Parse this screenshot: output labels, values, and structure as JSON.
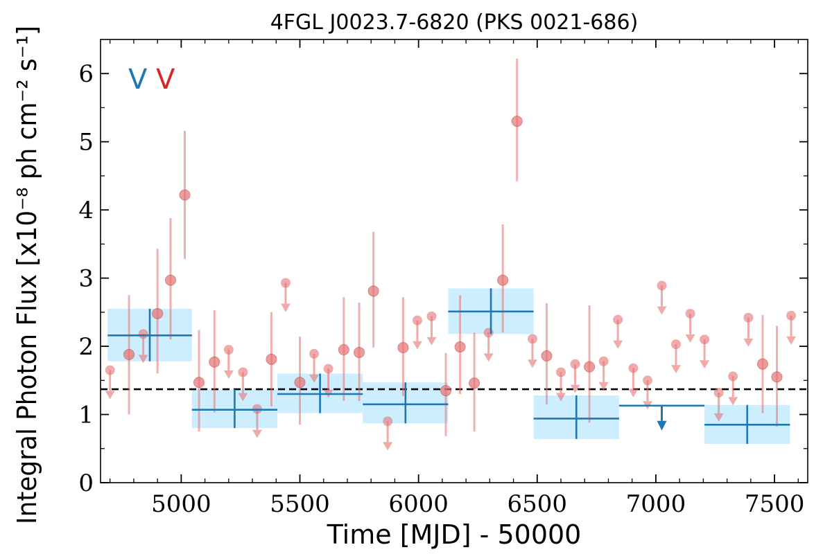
{
  "chart_data": {
    "type": "scatter",
    "title": "4FGL J0023.7-6820 (PKS 0021-686)",
    "xlabel": "Time [MJD] - 50000",
    "ylabel": "Integral Photon Flux [x10⁻⁸ ph cm⁻² s⁻¹]",
    "xlim": [
      4660,
      7640
    ],
    "ylim": [
      0,
      6.5
    ],
    "xticks": [
      5000,
      5500,
      6000,
      6500,
      7000,
      7500
    ],
    "yticks": [
      0,
      1,
      2,
      3,
      4,
      5,
      6
    ],
    "grid": false,
    "legend_position": "top-left",
    "legend_glyphs": [
      {
        "text": "V",
        "color": "#1f77b4"
      },
      {
        "text": "V",
        "color": "#d62728"
      }
    ],
    "mean_flux": 1.37,
    "colors": {
      "fine_bins": "#e57373",
      "coarse_bins": "#1f77b4",
      "coarse_band": "#cdeeff"
    },
    "series": [
      {
        "kind": "fine",
        "points": [
          {
            "x": 4700,
            "y": 1.65,
            "ul": true
          },
          {
            "x": 4780,
            "y": 1.88,
            "lo": 1.0,
            "hi": 2.75
          },
          {
            "x": 4840,
            "y": 2.18,
            "ul": true
          },
          {
            "x": 4900,
            "y": 2.48,
            "lo": 1.6,
            "hi": 3.43
          },
          {
            "x": 4955,
            "y": 2.97,
            "lo": 2.1,
            "hi": 3.88
          },
          {
            "x": 5015,
            "y": 4.22,
            "lo": 3.28,
            "hi": 5.16
          },
          {
            "x": 5075,
            "y": 1.47,
            "lo": 0.75,
            "hi": 2.24
          },
          {
            "x": 5140,
            "y": 1.77,
            "lo": 1.03,
            "hi": 2.53
          },
          {
            "x": 5200,
            "y": 1.95,
            "ul": true
          },
          {
            "x": 5260,
            "y": 1.62,
            "ul": true
          },
          {
            "x": 5320,
            "y": 1.08,
            "ul": true
          },
          {
            "x": 5380,
            "y": 1.81,
            "lo": 1.12,
            "hi": 2.5
          },
          {
            "x": 5440,
            "y": 2.93,
            "ul": true
          },
          {
            "x": 5500,
            "y": 1.47,
            "lo": 0.85,
            "hi": 2.14
          },
          {
            "x": 5560,
            "y": 1.89,
            "ul": true
          },
          {
            "x": 5620,
            "y": 1.67,
            "ul": true
          },
          {
            "x": 5685,
            "y": 1.95,
            "lo": 1.2,
            "hi": 2.72
          },
          {
            "x": 5750,
            "y": 1.91,
            "lo": 1.2,
            "hi": 2.64
          },
          {
            "x": 5810,
            "y": 2.81,
            "lo": 1.98,
            "hi": 3.68
          },
          {
            "x": 5870,
            "y": 0.9,
            "ul": true
          },
          {
            "x": 5935,
            "y": 1.98,
            "lo": 1.27,
            "hi": 2.72
          },
          {
            "x": 5995,
            "y": 2.38,
            "ul": true
          },
          {
            "x": 6055,
            "y": 2.44,
            "ul": true
          },
          {
            "x": 6115,
            "y": 1.35,
            "lo": 0.68,
            "hi": 1.9
          },
          {
            "x": 6175,
            "y": 1.99,
            "lo": 1.3,
            "hi": 2.75
          },
          {
            "x": 6235,
            "y": 1.46,
            "lo": 0.75,
            "hi": 2.2
          },
          {
            "x": 6295,
            "y": 2.2,
            "ul": true
          },
          {
            "x": 6355,
            "y": 2.97,
            "lo": 2.2,
            "hi": 3.79
          },
          {
            "x": 6415,
            "y": 5.3,
            "lo": 4.42,
            "hi": 6.22
          },
          {
            "x": 6480,
            "y": 2.11,
            "ul": true
          },
          {
            "x": 6540,
            "y": 1.86,
            "lo": 1.15,
            "hi": 2.63
          },
          {
            "x": 6600,
            "y": 1.62,
            "ul": true
          },
          {
            "x": 6660,
            "y": 1.74,
            "ul": true
          },
          {
            "x": 6720,
            "y": 1.7,
            "lo": 0.88,
            "hi": 2.6
          },
          {
            "x": 6780,
            "y": 1.78,
            "ul": true
          },
          {
            "x": 6840,
            "y": 2.39,
            "ul": true
          },
          {
            "x": 6905,
            "y": 1.68,
            "ul": true
          },
          {
            "x": 6965,
            "y": 1.5,
            "ul": true
          },
          {
            "x": 7025,
            "y": 2.89,
            "ul": true
          },
          {
            "x": 7085,
            "y": 2.03,
            "ul": true
          },
          {
            "x": 7145,
            "y": 2.48,
            "ul": true
          },
          {
            "x": 7205,
            "y": 2.1,
            "ul": true
          },
          {
            "x": 7265,
            "y": 1.32,
            "ul": true
          },
          {
            "x": 7325,
            "y": 1.56,
            "ul": true
          },
          {
            "x": 7390,
            "y": 2.42,
            "ul": true
          },
          {
            "x": 7450,
            "y": 1.74,
            "lo": 1.02,
            "hi": 2.46
          },
          {
            "x": 7510,
            "y": 1.55,
            "lo": 0.82,
            "hi": 2.3
          },
          {
            "x": 7570,
            "y": 2.45,
            "ul": true
          }
        ]
      },
      {
        "kind": "coarse",
        "bins": [
          {
            "x0": 4690,
            "x1": 5045,
            "y": 2.16,
            "lo": 1.78,
            "hi": 2.55
          },
          {
            "x0": 5045,
            "x1": 5405,
            "y": 1.07,
            "lo": 0.8,
            "hi": 1.37
          },
          {
            "x0": 5405,
            "x1": 5765,
            "y": 1.3,
            "lo": 1.02,
            "hi": 1.6
          },
          {
            "x0": 5765,
            "x1": 6125,
            "y": 1.15,
            "lo": 0.87,
            "hi": 1.47
          },
          {
            "x0": 6125,
            "x1": 6485,
            "y": 2.51,
            "lo": 2.18,
            "hi": 2.85
          },
          {
            "x0": 6485,
            "x1": 6845,
            "y": 0.94,
            "lo": 0.64,
            "hi": 1.28
          },
          {
            "x0": 6845,
            "x1": 7205,
            "y": 1.13,
            "ul": true
          },
          {
            "x0": 7205,
            "x1": 7565,
            "y": 0.85,
            "lo": 0.57,
            "hi": 1.14
          }
        ]
      }
    ]
  }
}
